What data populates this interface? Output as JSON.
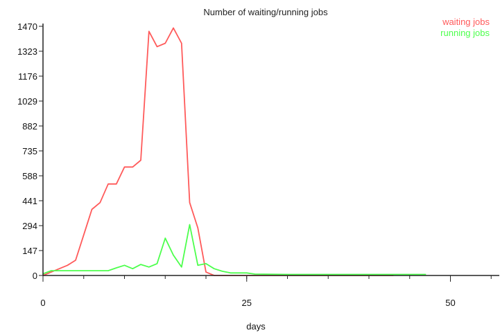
{
  "chart_data": {
    "type": "line",
    "title": "Number of waiting/running jobs",
    "xlabel": "days",
    "ylabel": "",
    "xlim": [
      0,
      56
    ],
    "ylim": [
      0,
      1470
    ],
    "x_ticks": [
      0,
      25,
      50
    ],
    "y_ticks": [
      0,
      147,
      294,
      441,
      588,
      735,
      882,
      1029,
      1176,
      1323,
      1470
    ],
    "grid": false,
    "legend_position": "top-right",
    "series": [
      {
        "name": "waiting jobs",
        "color": "#ff5a5a",
        "points": [
          [
            0,
            0
          ],
          [
            1,
            20
          ],
          [
            2,
            40
          ],
          [
            3,
            60
          ],
          [
            4,
            90
          ],
          [
            5,
            240
          ],
          [
            6,
            390
          ],
          [
            7,
            430
          ],
          [
            8,
            540
          ],
          [
            9,
            540
          ],
          [
            10,
            640
          ],
          [
            11,
            640
          ],
          [
            12,
            680
          ],
          [
            13,
            1440
          ],
          [
            14,
            1350
          ],
          [
            15,
            1370
          ],
          [
            16,
            1460
          ],
          [
            17,
            1370
          ],
          [
            18,
            430
          ],
          [
            19,
            280
          ],
          [
            20,
            20
          ],
          [
            21,
            0
          ],
          [
            30,
            0
          ],
          [
            43,
            0
          ]
        ]
      },
      {
        "name": "running jobs",
        "color": "#4cff4c",
        "points": [
          [
            0,
            10
          ],
          [
            1,
            28
          ],
          [
            2,
            28
          ],
          [
            4,
            28
          ],
          [
            6,
            28
          ],
          [
            8,
            28
          ],
          [
            9,
            45
          ],
          [
            10,
            60
          ],
          [
            11,
            40
          ],
          [
            12,
            65
          ],
          [
            13,
            50
          ],
          [
            14,
            70
          ],
          [
            15,
            220
          ],
          [
            16,
            120
          ],
          [
            17,
            50
          ],
          [
            18,
            300
          ],
          [
            19,
            60
          ],
          [
            20,
            70
          ],
          [
            21,
            40
          ],
          [
            22,
            25
          ],
          [
            23,
            15
          ],
          [
            25,
            15
          ],
          [
            26,
            8
          ],
          [
            30,
            6
          ],
          [
            35,
            6
          ],
          [
            40,
            6
          ],
          [
            45,
            6
          ],
          [
            47,
            6
          ]
        ]
      }
    ]
  }
}
